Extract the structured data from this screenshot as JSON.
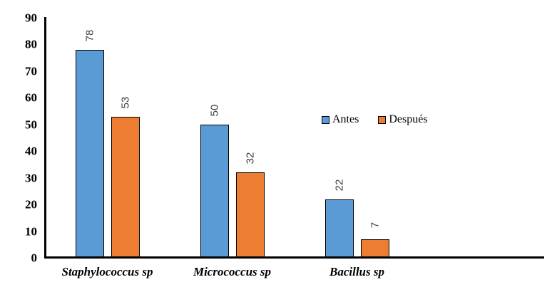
{
  "chart_data": {
    "type": "bar",
    "title": "",
    "xlabel": "",
    "ylabel": "",
    "categories": [
      "Staphylococcus sp",
      "Micrococcus sp",
      "Bacillus sp"
    ],
    "series": [
      {
        "name": "Antes",
        "color": "#5B9BD5",
        "values": [
          78,
          50,
          22
        ]
      },
      {
        "name": "Después",
        "color": "#ED7D31",
        "values": [
          53,
          32,
          7
        ]
      }
    ],
    "ylim": [
      0,
      90
    ],
    "y_ticks": [
      0,
      10,
      20,
      30,
      40,
      50,
      60,
      70,
      80,
      90
    ],
    "grid": false,
    "legend_position": "inside-center-right",
    "data_labels_rotated": true,
    "colors": {
      "axis_line": "#000000",
      "bar_border": "#000000",
      "data_label": "#404040",
      "tick_label": "#000000",
      "background": "#ffffff"
    }
  }
}
